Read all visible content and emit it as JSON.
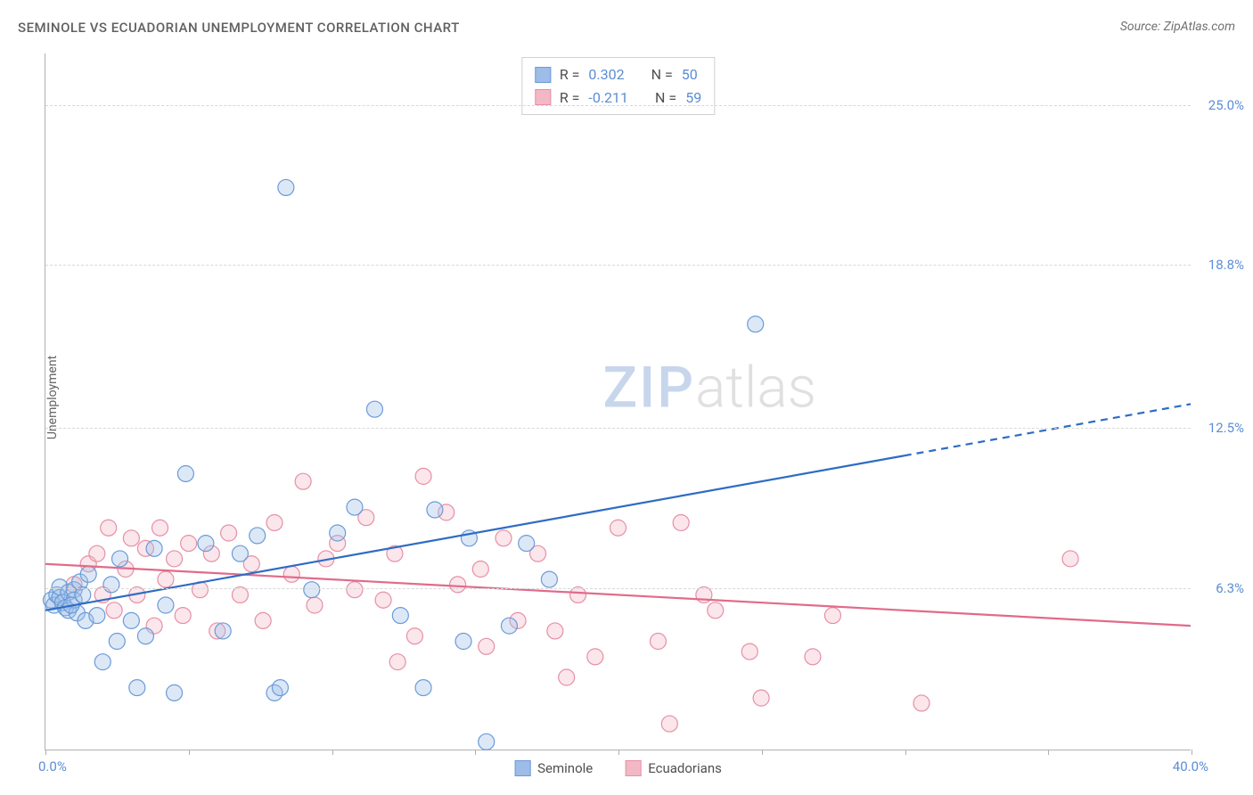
{
  "title": "SEMINOLE VS ECUADORIAN UNEMPLOYMENT CORRELATION CHART",
  "source_text": "Source: ZipAtlas.com",
  "y_axis_label": "Unemployment",
  "watermark_zip": "ZIP",
  "watermark_atlas": "atlas",
  "chart": {
    "type": "scatter",
    "background_color": "#ffffff",
    "grid_color": "#d8d8d8",
    "axis_color": "#b0b0b0",
    "tick_label_color": "#5b8dd6",
    "x_range": [
      0,
      40
    ],
    "y_range": [
      0,
      27
    ],
    "x_ticks": [
      0,
      5,
      10,
      15,
      20,
      25,
      30,
      35,
      40
    ],
    "y_gridlines": [
      6.3,
      12.5,
      18.8,
      25.0
    ],
    "y_tick_labels": [
      "6.3%",
      "12.5%",
      "18.8%",
      "25.0%"
    ],
    "x_label_min": "0.0%",
    "x_label_max": "40.0%",
    "marker_radius": 9,
    "marker_stroke_width": 1.2,
    "marker_fill_opacity": 0.35,
    "title_fontsize": 15,
    "label_fontsize": 14,
    "tick_fontsize": 15,
    "series": [
      {
        "name": "Seminole",
        "color_fill": "#9dbce8",
        "color_stroke": "#6a9bd8",
        "trend_color": "#2e6cc4",
        "trend_width": 2.2,
        "trend_solid_end_x": 30,
        "trend_y_at_0": 5.4,
        "trend_y_at_40": 13.4,
        "r_value": "0.302",
        "n_value": "50",
        "points": [
          [
            0.2,
            5.8
          ],
          [
            0.3,
            5.6
          ],
          [
            0.4,
            6.0
          ],
          [
            0.5,
            5.9
          ],
          [
            0.5,
            6.3
          ],
          [
            0.6,
            5.7
          ],
          [
            0.7,
            5.5
          ],
          [
            0.8,
            6.1
          ],
          [
            0.8,
            5.4
          ],
          [
            1.0,
            6.2
          ],
          [
            1.1,
            5.3
          ],
          [
            1.2,
            6.5
          ],
          [
            1.4,
            5.0
          ],
          [
            1.5,
            6.8
          ],
          [
            1.8,
            5.2
          ],
          [
            2.0,
            3.4
          ],
          [
            2.3,
            6.4
          ],
          [
            2.5,
            4.2
          ],
          [
            2.6,
            7.4
          ],
          [
            3.0,
            5.0
          ],
          [
            3.2,
            2.4
          ],
          [
            3.5,
            4.4
          ],
          [
            3.8,
            7.8
          ],
          [
            4.2,
            5.6
          ],
          [
            4.5,
            2.2
          ],
          [
            4.9,
            10.7
          ],
          [
            5.6,
            8.0
          ],
          [
            6.2,
            4.6
          ],
          [
            6.8,
            7.6
          ],
          [
            7.4,
            8.3
          ],
          [
            8.0,
            2.2
          ],
          [
            8.2,
            2.4
          ],
          [
            8.4,
            21.8
          ],
          [
            9.3,
            6.2
          ],
          [
            10.2,
            8.4
          ],
          [
            10.8,
            9.4
          ],
          [
            11.5,
            13.2
          ],
          [
            12.4,
            5.2
          ],
          [
            13.2,
            2.4
          ],
          [
            13.6,
            9.3
          ],
          [
            14.6,
            4.2
          ],
          [
            14.8,
            8.2
          ],
          [
            15.4,
            0.3
          ],
          [
            16.2,
            4.8
          ],
          [
            16.8,
            8.0
          ],
          [
            17.6,
            6.6
          ],
          [
            24.8,
            16.5
          ],
          [
            1.0,
            5.8
          ],
          [
            0.9,
            5.6
          ],
          [
            1.3,
            6.0
          ]
        ]
      },
      {
        "name": "Ecuadorians",
        "color_fill": "#f2b8c6",
        "color_stroke": "#e78fa6",
        "trend_color": "#e06b8b",
        "trend_width": 2.2,
        "trend_y_at_0": 7.2,
        "trend_y_at_40": 4.8,
        "r_value": "-0.211",
        "n_value": "59",
        "points": [
          [
            1.0,
            6.4
          ],
          [
            1.5,
            7.2
          ],
          [
            1.8,
            7.6
          ],
          [
            2.0,
            6.0
          ],
          [
            2.2,
            8.6
          ],
          [
            2.4,
            5.4
          ],
          [
            2.8,
            7.0
          ],
          [
            3.0,
            8.2
          ],
          [
            3.2,
            6.0
          ],
          [
            3.5,
            7.8
          ],
          [
            3.8,
            4.8
          ],
          [
            4.0,
            8.6
          ],
          [
            4.2,
            6.6
          ],
          [
            4.5,
            7.4
          ],
          [
            4.8,
            5.2
          ],
          [
            5.0,
            8.0
          ],
          [
            5.4,
            6.2
          ],
          [
            5.8,
            7.6
          ],
          [
            6.0,
            4.6
          ],
          [
            6.4,
            8.4
          ],
          [
            6.8,
            6.0
          ],
          [
            7.2,
            7.2
          ],
          [
            7.6,
            5.0
          ],
          [
            8.0,
            8.8
          ],
          [
            8.6,
            6.8
          ],
          [
            9.0,
            10.4
          ],
          [
            9.4,
            5.6
          ],
          [
            9.8,
            7.4
          ],
          [
            10.2,
            8.0
          ],
          [
            10.8,
            6.2
          ],
          [
            11.2,
            9.0
          ],
          [
            11.8,
            5.8
          ],
          [
            12.2,
            7.6
          ],
          [
            12.3,
            3.4
          ],
          [
            12.9,
            4.4
          ],
          [
            13.2,
            10.6
          ],
          [
            14.0,
            9.2
          ],
          [
            14.4,
            6.4
          ],
          [
            15.2,
            7.0
          ],
          [
            15.4,
            4.0
          ],
          [
            16.0,
            8.2
          ],
          [
            16.5,
            5.0
          ],
          [
            17.2,
            7.6
          ],
          [
            17.8,
            4.6
          ],
          [
            18.2,
            2.8
          ],
          [
            18.6,
            6.0
          ],
          [
            19.2,
            3.6
          ],
          [
            20.0,
            8.6
          ],
          [
            21.4,
            4.2
          ],
          [
            22.2,
            8.8
          ],
          [
            23.0,
            6.0
          ],
          [
            23.4,
            5.4
          ],
          [
            24.6,
            3.8
          ],
          [
            25.0,
            2.0
          ],
          [
            26.8,
            3.6
          ],
          [
            27.5,
            5.2
          ],
          [
            30.6,
            1.8
          ],
          [
            35.8,
            7.4
          ],
          [
            21.8,
            1.0
          ]
        ]
      }
    ]
  },
  "top_legend": {
    "r_label": "R =",
    "n_label": "N ="
  },
  "bottom_legend": {
    "items": [
      "Seminole",
      "Ecuadorians"
    ]
  }
}
